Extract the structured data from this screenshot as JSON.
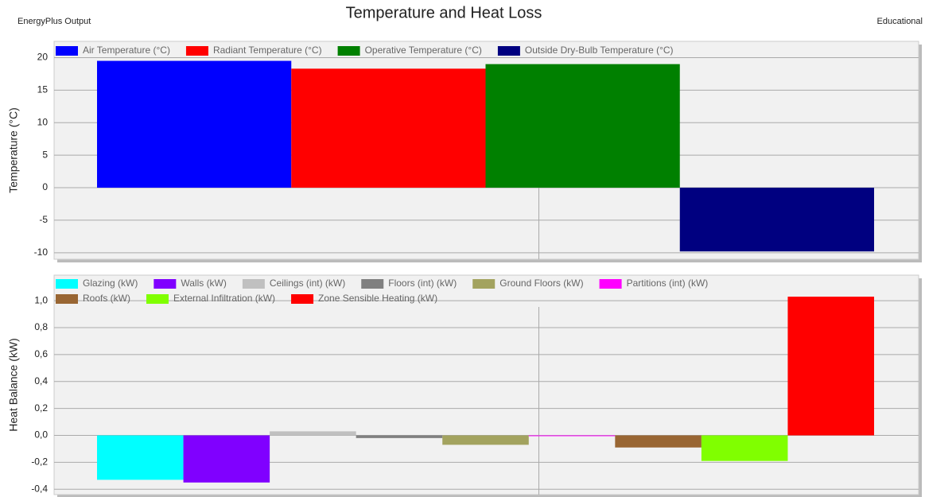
{
  "header": {
    "left": "EnergyPlus Output",
    "title": "Temperature and Heat Loss",
    "right": "Educational"
  },
  "chart_data": [
    {
      "type": "bar",
      "ylabel": "Temperature (°C)",
      "categories": [
        null
      ],
      "grid": true,
      "ylim": [
        -11,
        22.5
      ],
      "yticks": [
        -10,
        -5,
        0,
        5,
        10,
        15,
        20
      ],
      "series": [
        {
          "name": "Air Temperature (°C)",
          "color": "#0000ff",
          "values": [
            19.5
          ]
        },
        {
          "name": "Radiant Temperature (°C)",
          "color": "#ff0000",
          "values": [
            18.3
          ]
        },
        {
          "name": "Operative Temperature (°C)",
          "color": "#008000",
          "values": [
            19
          ]
        },
        {
          "name": "Outside Dry-Bulb Temperature (°C)",
          "color": "#000080",
          "values": [
            -9.8
          ]
        }
      ]
    },
    {
      "type": "bar",
      "ylabel": "Heat Balance (kW)",
      "categories": [
        null
      ],
      "grid": true,
      "ylim": [
        -0.44,
        1.19
      ],
      "yticks": [
        {
          "value": -0.4,
          "label": "-0,4"
        },
        {
          "value": -0.2,
          "label": "-0,2"
        },
        {
          "value": 0,
          "label": "0,0"
        },
        {
          "value": 0.2,
          "label": "0,2"
        },
        {
          "value": 0.4,
          "label": "0,4"
        },
        {
          "value": 0.6,
          "label": "0,6"
        },
        {
          "value": 0.8,
          "label": "0,8"
        },
        {
          "value": 1.0,
          "label": "1,0"
        }
      ],
      "series": [
        {
          "name": "Glazing (kW)",
          "color": "#00ffff",
          "values": [
            -0.33
          ]
        },
        {
          "name": "Walls (kW)",
          "color": "#8000ff",
          "values": [
            -0.35
          ]
        },
        {
          "name": "Ceilings (int) (kW)",
          "color": "#c0c0c0",
          "values": [
            0.03
          ]
        },
        {
          "name": "Floors (int) (kW)",
          "color": "#808080",
          "values": [
            -0.02
          ]
        },
        {
          "name": "Ground Floors (kW)",
          "color": "#a3a35f",
          "values": [
            -0.07
          ]
        },
        {
          "name": "Partitions (int) (kW)",
          "color": "#ff00ff",
          "values": [
            -0.005
          ]
        },
        {
          "name": "Roofs (kW)",
          "color": "#996633",
          "values": [
            -0.09
          ]
        },
        {
          "name": "External Infiltration (kW)",
          "color": "#80ff00",
          "values": [
            -0.19
          ]
        },
        {
          "name": "Zone Sensible Heating (kW)",
          "color": "#ff0000",
          "values": [
            1.03
          ]
        }
      ]
    }
  ]
}
